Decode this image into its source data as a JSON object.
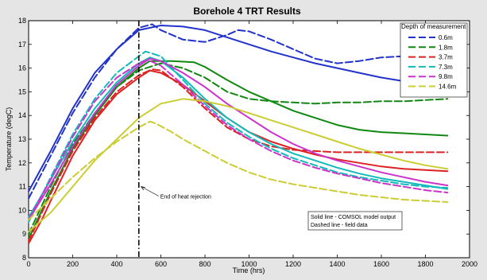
{
  "chart_data": {
    "type": "line",
    "title": "Borehole 4 TRT Results",
    "xlabel": "Time (hrs)",
    "ylabel": "Temperature (degC)",
    "xlim": [
      0,
      2000
    ],
    "ylim": [
      8,
      18
    ],
    "xticks": [
      0,
      200,
      400,
      600,
      800,
      1000,
      1200,
      1400,
      1600,
      1800,
      2000
    ],
    "yticks": [
      8,
      9,
      10,
      11,
      12,
      13,
      14,
      15,
      16,
      17,
      18
    ],
    "grid": false,
    "legend": {
      "title": "Depth of measurement",
      "placement": "top-right",
      "entries": [
        {
          "label": "0.6m",
          "color": "#2233cc"
        },
        {
          "label": "1.8m",
          "color": "#118811"
        },
        {
          "label": "3.7m",
          "color": "#dd2222"
        },
        {
          "label": "7.3m",
          "color": "#11bbbb"
        },
        {
          "label": "9.8m",
          "color": "#cc33cc"
        },
        {
          "label": "14.6m",
          "color": "#cccc33"
        }
      ]
    },
    "annotations": {
      "heat_rejection_x": 500,
      "arrow_text": "End of heat rejection",
      "note_lines": [
        "Solid line - COMSOL model output",
        "Dashed line - field data"
      ]
    },
    "series": [
      {
        "depth": "0.6m",
        "kind": "COMSOL",
        "color": "#2233cc",
        "dashed": false,
        "points": [
          [
            0,
            10.8
          ],
          [
            100,
            12.5
          ],
          [
            200,
            14.3
          ],
          [
            300,
            15.8
          ],
          [
            400,
            16.8
          ],
          [
            500,
            17.6
          ],
          [
            600,
            17.8
          ],
          [
            700,
            17.75
          ],
          [
            800,
            17.6
          ],
          [
            900,
            17.3
          ],
          [
            1000,
            17.0
          ],
          [
            1100,
            16.7
          ],
          [
            1200,
            16.45
          ],
          [
            1300,
            16.2
          ],
          [
            1400,
            16.0
          ],
          [
            1500,
            15.8
          ],
          [
            1600,
            15.6
          ],
          [
            1700,
            15.45
          ],
          [
            1800,
            15.3
          ],
          [
            1900,
            15.15
          ]
        ]
      },
      {
        "depth": "0.6m",
        "kind": "field",
        "color": "#2233cc",
        "dashed": true,
        "points": [
          [
            0,
            10.5
          ],
          [
            100,
            12.3
          ],
          [
            200,
            14.1
          ],
          [
            300,
            15.6
          ],
          [
            400,
            16.8
          ],
          [
            500,
            17.7
          ],
          [
            560,
            17.85
          ],
          [
            600,
            17.6
          ],
          [
            700,
            17.2
          ],
          [
            800,
            17.1
          ],
          [
            900,
            17.4
          ],
          [
            950,
            17.6
          ],
          [
            1000,
            17.55
          ],
          [
            1100,
            17.2
          ],
          [
            1200,
            16.8
          ],
          [
            1300,
            16.4
          ],
          [
            1400,
            16.2
          ],
          [
            1500,
            16.3
          ],
          [
            1600,
            16.45
          ],
          [
            1700,
            16.5
          ],
          [
            1800,
            16.55
          ],
          [
            1900,
            16.6
          ]
        ]
      },
      {
        "depth": "1.8m",
        "kind": "COMSOL",
        "color": "#118811",
        "dashed": false,
        "points": [
          [
            0,
            8.8
          ],
          [
            100,
            10.8
          ],
          [
            200,
            12.6
          ],
          [
            300,
            14.0
          ],
          [
            400,
            15.2
          ],
          [
            500,
            16.0
          ],
          [
            550,
            16.3
          ],
          [
            650,
            16.3
          ],
          [
            750,
            16.25
          ],
          [
            800,
            16.05
          ],
          [
            900,
            15.5
          ],
          [
            1000,
            15.0
          ],
          [
            1100,
            14.6
          ],
          [
            1200,
            14.2
          ],
          [
            1300,
            13.9
          ],
          [
            1400,
            13.6
          ],
          [
            1500,
            13.4
          ],
          [
            1600,
            13.3
          ],
          [
            1700,
            13.25
          ],
          [
            1800,
            13.2
          ],
          [
            1900,
            13.15
          ]
        ]
      },
      {
        "depth": "1.8m",
        "kind": "field",
        "color": "#118811",
        "dashed": true,
        "points": [
          [
            0,
            9.0
          ],
          [
            100,
            11.0
          ],
          [
            200,
            12.8
          ],
          [
            300,
            14.1
          ],
          [
            400,
            15.2
          ],
          [
            500,
            15.9
          ],
          [
            600,
            16.2
          ],
          [
            700,
            16.0
          ],
          [
            800,
            15.6
          ],
          [
            900,
            15.0
          ],
          [
            1000,
            14.7
          ],
          [
            1100,
            14.6
          ],
          [
            1200,
            14.55
          ],
          [
            1300,
            14.5
          ],
          [
            1400,
            14.55
          ],
          [
            1500,
            14.55
          ],
          [
            1600,
            14.6
          ],
          [
            1700,
            14.6
          ],
          [
            1800,
            14.65
          ],
          [
            1900,
            14.7
          ]
        ]
      },
      {
        "depth": "3.7m",
        "kind": "COMSOL",
        "color": "#dd2222",
        "dashed": false,
        "points": [
          [
            0,
            8.6
          ],
          [
            60,
            9.6
          ],
          [
            100,
            10.4
          ],
          [
            200,
            12.3
          ],
          [
            300,
            13.8
          ],
          [
            400,
            14.9
          ],
          [
            500,
            15.6
          ],
          [
            550,
            15.9
          ],
          [
            600,
            15.8
          ],
          [
            700,
            15.3
          ],
          [
            800,
            14.6
          ],
          [
            900,
            13.9
          ],
          [
            1000,
            13.3
          ],
          [
            1100,
            12.9
          ],
          [
            1200,
            12.6
          ],
          [
            1300,
            12.35
          ],
          [
            1400,
            12.15
          ],
          [
            1500,
            12.0
          ],
          [
            1600,
            11.85
          ],
          [
            1700,
            11.75
          ],
          [
            1800,
            11.7
          ],
          [
            1900,
            11.65
          ]
        ]
      },
      {
        "depth": "3.7m",
        "kind": "field",
        "color": "#dd2222",
        "dashed": true,
        "points": [
          [
            0,
            8.7
          ],
          [
            100,
            10.7
          ],
          [
            200,
            12.5
          ],
          [
            300,
            13.9
          ],
          [
            400,
            15.0
          ],
          [
            500,
            15.7
          ],
          [
            560,
            15.95
          ],
          [
            600,
            15.9
          ],
          [
            700,
            15.2
          ],
          [
            800,
            14.3
          ],
          [
            900,
            13.5
          ],
          [
            1000,
            13.0
          ],
          [
            1100,
            12.7
          ],
          [
            1200,
            12.55
          ],
          [
            1300,
            12.5
          ],
          [
            1400,
            12.45
          ],
          [
            1500,
            12.45
          ],
          [
            1600,
            12.45
          ],
          [
            1700,
            12.45
          ],
          [
            1800,
            12.45
          ],
          [
            1900,
            12.45
          ]
        ]
      },
      {
        "depth": "7.3m",
        "kind": "COMSOL",
        "color": "#11bbbb",
        "dashed": false,
        "points": [
          [
            0,
            9.7
          ],
          [
            100,
            11.3
          ],
          [
            200,
            12.9
          ],
          [
            300,
            14.3
          ],
          [
            400,
            15.4
          ],
          [
            500,
            16.2
          ],
          [
            550,
            16.45
          ],
          [
            600,
            16.3
          ],
          [
            700,
            15.6
          ],
          [
            800,
            14.7
          ],
          [
            900,
            13.9
          ],
          [
            1000,
            13.3
          ],
          [
            1100,
            12.8
          ],
          [
            1200,
            12.4
          ],
          [
            1300,
            12.1
          ],
          [
            1400,
            11.8
          ],
          [
            1500,
            11.55
          ],
          [
            1600,
            11.35
          ],
          [
            1700,
            11.2
          ],
          [
            1800,
            11.05
          ],
          [
            1900,
            10.9
          ]
        ]
      },
      {
        "depth": "7.3m",
        "kind": "field",
        "color": "#11bbbb",
        "dashed": true,
        "points": [
          [
            0,
            9.5
          ],
          [
            100,
            11.4
          ],
          [
            200,
            13.2
          ],
          [
            300,
            14.7
          ],
          [
            400,
            15.8
          ],
          [
            500,
            16.5
          ],
          [
            530,
            16.7
          ],
          [
            600,
            16.5
          ],
          [
            700,
            15.5
          ],
          [
            800,
            14.5
          ],
          [
            900,
            13.7
          ],
          [
            1000,
            13.1
          ],
          [
            1100,
            12.6
          ],
          [
            1200,
            12.2
          ],
          [
            1300,
            11.9
          ],
          [
            1400,
            11.6
          ],
          [
            1500,
            11.4
          ],
          [
            1600,
            11.25
          ],
          [
            1700,
            11.1
          ],
          [
            1800,
            11.0
          ],
          [
            1900,
            10.95
          ]
        ]
      },
      {
        "depth": "9.8m",
        "kind": "COMSOL",
        "color": "#cc33cc",
        "dashed": false,
        "points": [
          [
            0,
            9.6
          ],
          [
            100,
            11.1
          ],
          [
            200,
            12.7
          ],
          [
            300,
            14.1
          ],
          [
            400,
            15.3
          ],
          [
            500,
            16.1
          ],
          [
            550,
            16.4
          ],
          [
            600,
            16.3
          ],
          [
            700,
            15.8
          ],
          [
            800,
            15.2
          ],
          [
            900,
            14.5
          ],
          [
            1000,
            13.9
          ],
          [
            1100,
            13.3
          ],
          [
            1200,
            12.8
          ],
          [
            1300,
            12.4
          ],
          [
            1400,
            12.1
          ],
          [
            1500,
            11.85
          ],
          [
            1600,
            11.6
          ],
          [
            1700,
            11.4
          ],
          [
            1800,
            11.2
          ],
          [
            1900,
            11.05
          ]
        ]
      },
      {
        "depth": "9.8m",
        "kind": "field",
        "color": "#cc33cc",
        "dashed": true,
        "points": [
          [
            0,
            9.6
          ],
          [
            100,
            11.3
          ],
          [
            200,
            13.1
          ],
          [
            300,
            14.6
          ],
          [
            400,
            15.6
          ],
          [
            500,
            16.2
          ],
          [
            540,
            16.35
          ],
          [
            600,
            16.1
          ],
          [
            700,
            15.3
          ],
          [
            800,
            14.4
          ],
          [
            900,
            13.6
          ],
          [
            1000,
            13.0
          ],
          [
            1100,
            12.5
          ],
          [
            1200,
            12.1
          ],
          [
            1300,
            11.8
          ],
          [
            1400,
            11.55
          ],
          [
            1500,
            11.35
          ],
          [
            1600,
            11.15
          ],
          [
            1700,
            11.0
          ],
          [
            1800,
            10.85
          ],
          [
            1900,
            10.75
          ]
        ]
      },
      {
        "depth": "14.6m",
        "kind": "COMSOL",
        "color": "#cccc33",
        "dashed": false,
        "points": [
          [
            0,
            9.1
          ],
          [
            100,
            9.9
          ],
          [
            200,
            11.0
          ],
          [
            300,
            12.1
          ],
          [
            400,
            13.0
          ],
          [
            500,
            13.9
          ],
          [
            600,
            14.5
          ],
          [
            700,
            14.7
          ],
          [
            800,
            14.6
          ],
          [
            900,
            14.4
          ],
          [
            1000,
            14.1
          ],
          [
            1100,
            13.8
          ],
          [
            1200,
            13.5
          ],
          [
            1300,
            13.2
          ],
          [
            1400,
            12.9
          ],
          [
            1500,
            12.6
          ],
          [
            1600,
            12.35
          ],
          [
            1700,
            12.1
          ],
          [
            1800,
            11.9
          ],
          [
            1900,
            11.75
          ]
        ]
      },
      {
        "depth": "14.6m",
        "kind": "field",
        "color": "#cccc33",
        "dashed": true,
        "points": [
          [
            0,
            9.6
          ],
          [
            100,
            10.5
          ],
          [
            200,
            11.4
          ],
          [
            300,
            12.2
          ],
          [
            400,
            12.9
          ],
          [
            500,
            13.5
          ],
          [
            550,
            13.75
          ],
          [
            580,
            13.65
          ],
          [
            650,
            13.3
          ],
          [
            700,
            13.0
          ],
          [
            800,
            12.5
          ],
          [
            900,
            12.0
          ],
          [
            1000,
            11.6
          ],
          [
            1100,
            11.3
          ],
          [
            1200,
            11.1
          ],
          [
            1300,
            10.95
          ],
          [
            1400,
            10.8
          ],
          [
            1500,
            10.65
          ],
          [
            1600,
            10.55
          ],
          [
            1700,
            10.45
          ],
          [
            1800,
            10.4
          ],
          [
            1900,
            10.35
          ]
        ]
      }
    ]
  }
}
